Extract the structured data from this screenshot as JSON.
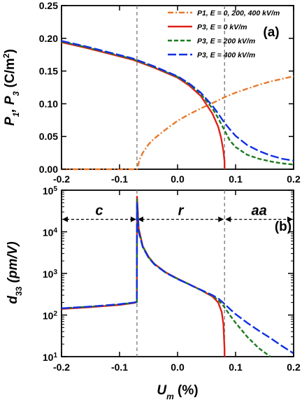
{
  "chart_data": [
    {
      "panel": "(a)",
      "type": "line",
      "ylabel": "P1, P3 (C/m2)",
      "xlim": [
        -0.2,
        0.2
      ],
      "ylim": [
        0,
        0.25
      ],
      "x_ticks": [
        "-0.2",
        "-0.1",
        "0.0",
        "0.1",
        "0.2"
      ],
      "y_ticks": [
        "0.00",
        "0.05",
        "0.10",
        "0.15",
        "0.20",
        "0.25"
      ],
      "vertical_dashed_lines_x": [
        -0.07,
        0.081
      ],
      "legend_position": "top-right",
      "legend": [
        {
          "text": "P1, E = 0, 200, 400 kV/m",
          "color": "#E87A2E",
          "style": "dash-dot"
        },
        {
          "text": "P3, E = 0 kV/m",
          "color": "#E0201B",
          "style": "solid"
        },
        {
          "text": "P3, E = 200 kV/m",
          "color": "#1E7A1E",
          "style": "dashed"
        },
        {
          "text": "P3, E = 400 kV/m",
          "color": "#1030E0",
          "style": "long-dash"
        }
      ],
      "series": [
        {
          "name": "P1, E = 0, 200, 400 kV/m",
          "color": "#E87A2E",
          "x": [
            -0.2,
            -0.1,
            -0.07,
            -0.065,
            -0.06,
            -0.05,
            -0.04,
            -0.02,
            0.0,
            0.02,
            0.04,
            0.06,
            0.081,
            0.1,
            0.12,
            0.14,
            0.16,
            0.18,
            0.2
          ],
          "y": [
            0,
            0,
            0,
            0.016,
            0.025,
            0.038,
            0.047,
            0.061,
            0.074,
            0.084,
            0.093,
            0.101,
            0.11,
            0.117,
            0.123,
            0.129,
            0.134,
            0.138,
            0.142
          ]
        },
        {
          "name": "P3, E = 0 kV/m",
          "color": "#E0201B",
          "x": [
            -0.2,
            -0.16,
            -0.12,
            -0.08,
            -0.07,
            -0.04,
            0.0,
            0.02,
            0.04,
            0.06,
            0.07,
            0.075,
            0.079,
            0.081,
            0.081
          ],
          "y": [
            0.194,
            0.186,
            0.177,
            0.168,
            0.165,
            0.155,
            0.14,
            0.128,
            0.112,
            0.085,
            0.065,
            0.048,
            0.028,
            0.012,
            0
          ]
        },
        {
          "name": "P3, E = 200 kV/m",
          "color": "#1E7A1E",
          "x": [
            -0.2,
            -0.16,
            -0.12,
            -0.08,
            -0.07,
            -0.04,
            0.0,
            0.02,
            0.04,
            0.06,
            0.07,
            0.08,
            0.09,
            0.1,
            0.12,
            0.14,
            0.16,
            0.18,
            0.2
          ],
          "y": [
            0.195,
            0.187,
            0.178,
            0.169,
            0.166,
            0.156,
            0.141,
            0.13,
            0.115,
            0.093,
            0.078,
            0.061,
            0.044,
            0.034,
            0.022,
            0.016,
            0.012,
            0.009,
            0.007
          ]
        },
        {
          "name": "P3, E = 400 kV/m",
          "color": "#1030E0",
          "x": [
            -0.2,
            -0.16,
            -0.12,
            -0.08,
            -0.07,
            -0.04,
            0.0,
            0.02,
            0.04,
            0.06,
            0.07,
            0.08,
            0.09,
            0.1,
            0.12,
            0.14,
            0.16,
            0.18,
            0.2
          ],
          "y": [
            0.196,
            0.188,
            0.179,
            0.17,
            0.167,
            0.157,
            0.142,
            0.131,
            0.117,
            0.097,
            0.085,
            0.072,
            0.061,
            0.051,
            0.037,
            0.028,
            0.021,
            0.016,
            0.013
          ]
        }
      ]
    },
    {
      "panel": "(b)",
      "type": "line",
      "scale_y": "log",
      "xlabel": "Um (%)",
      "ylabel": "d33 (pm/V)",
      "xlim": [
        -0.2,
        0.2
      ],
      "ylim": [
        10,
        100000
      ],
      "x_ticks": [
        "-0.2",
        "-0.1",
        "0.0",
        "0.1",
        "0.2"
      ],
      "y_ticks": [
        "10^1",
        "10^2",
        "10^3",
        "10^4",
        "10^5"
      ],
      "vertical_dashed_lines_x": [
        -0.07,
        0.081
      ],
      "phase_regions": [
        {
          "label": "c",
          "from": -0.2,
          "to": -0.07
        },
        {
          "label": "r",
          "from": -0.07,
          "to": 0.081
        },
        {
          "label": "aa",
          "from": 0.081,
          "to": 0.2
        }
      ],
      "series": [
        {
          "name": "E = 0 kV/m",
          "color": "#E0201B",
          "x": [
            -0.2,
            -0.15,
            -0.1,
            -0.075,
            -0.0705,
            -0.0701,
            -0.0699,
            -0.067,
            -0.06,
            -0.05,
            -0.04,
            -0.02,
            0.0,
            0.02,
            0.04,
            0.06,
            0.07,
            0.076,
            0.079,
            0.08,
            0.081,
            0.081
          ],
          "y": [
            140,
            155,
            175,
            195,
            205,
            205,
            70000,
            12000,
            4500,
            2500,
            1700,
            1050,
            750,
            550,
            400,
            280,
            200,
            120,
            60,
            30,
            15,
            10
          ]
        },
        {
          "name": "E = 200 kV/m",
          "color": "#1E7A1E",
          "x": [
            -0.2,
            -0.15,
            -0.1,
            -0.075,
            -0.0705,
            -0.0701,
            -0.0699,
            -0.067,
            -0.06,
            -0.05,
            -0.04,
            -0.02,
            0.0,
            0.02,
            0.04,
            0.06,
            0.07,
            0.08,
            0.09,
            0.1,
            0.12,
            0.14,
            0.16
          ],
          "y": [
            145,
            160,
            180,
            198,
            205,
            205,
            60000,
            11000,
            4400,
            2450,
            1680,
            1040,
            740,
            545,
            400,
            290,
            230,
            160,
            100,
            65,
            30,
            16,
            10
          ]
        },
        {
          "name": "E = 400 kV/m",
          "color": "#1030E0",
          "x": [
            -0.2,
            -0.15,
            -0.1,
            -0.075,
            -0.0705,
            -0.0701,
            -0.0699,
            -0.067,
            -0.06,
            -0.05,
            -0.04,
            -0.02,
            0.0,
            0.02,
            0.04,
            0.06,
            0.07,
            0.08,
            0.09,
            0.1,
            0.12,
            0.14,
            0.16,
            0.18,
            0.2
          ],
          "y": [
            145,
            160,
            182,
            200,
            208,
            208,
            50000,
            10000,
            4300,
            2400,
            1650,
            1030,
            735,
            545,
            405,
            300,
            250,
            190,
            140,
            105,
            65,
            42,
            28,
            18,
            12
          ]
        }
      ]
    }
  ]
}
